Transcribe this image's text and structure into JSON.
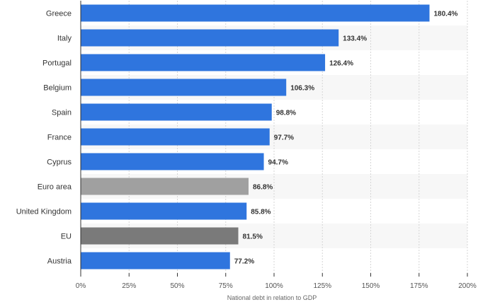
{
  "chart_data": {
    "type": "bar",
    "orientation": "horizontal",
    "title": "",
    "xlabel": "National debt in relation to GDP",
    "ylabel": "",
    "xlim": [
      0,
      200
    ],
    "x_ticks": [
      0,
      25,
      50,
      75,
      100,
      125,
      150,
      175,
      200
    ],
    "x_tick_labels": [
      "0%",
      "25%",
      "50%",
      "75%",
      "100%",
      "125%",
      "150%",
      "175%",
      "200%"
    ],
    "categories": [
      "Greece",
      "Italy",
      "Portugal",
      "Belgium",
      "Spain",
      "France",
      "Cyprus",
      "Euro area",
      "United Kingdom",
      "EU",
      "Austria"
    ],
    "values": [
      180.4,
      133.4,
      126.4,
      106.3,
      98.8,
      97.7,
      94.7,
      86.8,
      85.8,
      81.5,
      77.2
    ],
    "value_labels": [
      "180.4%",
      "133.4%",
      "126.4%",
      "106.3%",
      "98.8%",
      "97.7%",
      "94.7%",
      "86.8%",
      "85.8%",
      "81.5%",
      "77.2%"
    ],
    "bar_colors": [
      "#2f75de",
      "#2f75de",
      "#2f75de",
      "#2f75de",
      "#2f75de",
      "#2f75de",
      "#2f75de",
      "#a0a0a0",
      "#2f75de",
      "#7a7a7a",
      "#2f75de"
    ],
    "grid": true,
    "legend": "none"
  },
  "colors": {
    "bar_default": "#2f75de",
    "stripe": "#f7f7f7",
    "grid": "#d6d6d6",
    "axis": "#333333"
  }
}
